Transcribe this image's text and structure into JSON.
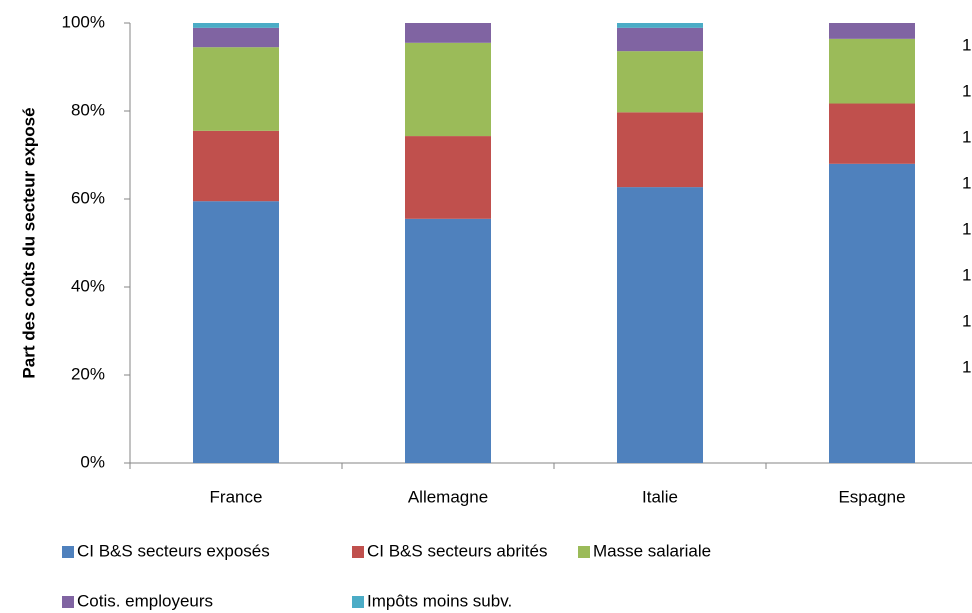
{
  "chart_data": {
    "type": "stacked_bar",
    "y_axis_label": "Part des coûts du secteur exposé",
    "categories": [
      "France",
      "Allemagne",
      "Italie",
      "Espagne"
    ],
    "series": [
      {
        "name": "CI B&S secteurs exposés",
        "color": "#4f81bd",
        "values": [
          59.5,
          55.5,
          62.7,
          68
        ]
      },
      {
        "name": "CI B&S secteurs abrités",
        "color": "#c0504d",
        "values": [
          16,
          18.8,
          17,
          13.7
        ]
      },
      {
        "name": "Masse salariale",
        "color": "#9bbb59",
        "values": [
          19,
          21.2,
          13.9,
          14.7
        ]
      },
      {
        "name": "Cotis. employeurs",
        "color": "#8064a2",
        "values": [
          4.4,
          4.5,
          5.3,
          3.6
        ]
      },
      {
        "name": "Impôts moins subv.",
        "color": "#4bacc6",
        "values": [
          1.1,
          0,
          1.1,
          0
        ]
      }
    ],
    "ylim": [
      0,
      100
    ],
    "yticks": [
      {
        "value": 0,
        "label": "0%"
      },
      {
        "value": 20,
        "label": "20%"
      },
      {
        "value": 40,
        "label": "40%"
      },
      {
        "value": 60,
        "label": "60%"
      },
      {
        "value": 80,
        "label": "80%"
      },
      {
        "value": 100,
        "label": "100%"
      }
    ],
    "right_labels": [
      "1",
      "1",
      "1",
      "1",
      "1",
      "1",
      "1",
      "1"
    ],
    "grid": false
  }
}
